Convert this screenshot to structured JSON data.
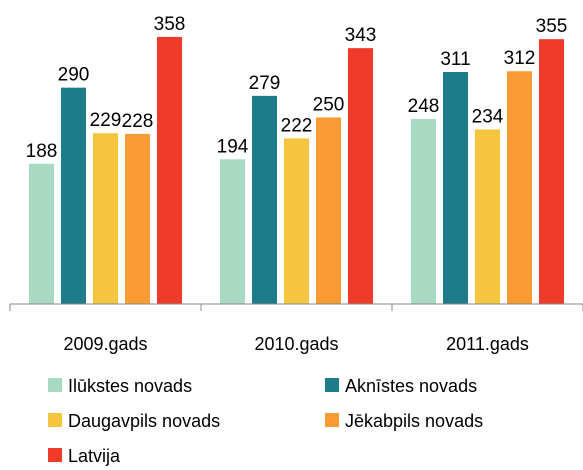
{
  "chart_data": {
    "type": "bar",
    "categories": [
      "2009.gads",
      "2010.gads",
      "2011.gads"
    ],
    "series": [
      {
        "name": "Ilūkstes novads",
        "color": "#a8d9c2",
        "values": [
          188,
          194,
          248
        ]
      },
      {
        "name": "Aknīstes novads",
        "color": "#1e7c8a",
        "values": [
          290,
          279,
          311
        ]
      },
      {
        "name": "Daugavpils novads",
        "color": "#f5c540",
        "values": [
          229,
          222,
          234
        ]
      },
      {
        "name": "Jēkabpils novads",
        "color": "#f99b32",
        "values": [
          228,
          250,
          312
        ]
      },
      {
        "name": "Latvija",
        "color": "#ee3b2a",
        "values": [
          358,
          343,
          355
        ]
      }
    ],
    "ylim": [
      0,
      400
    ]
  }
}
